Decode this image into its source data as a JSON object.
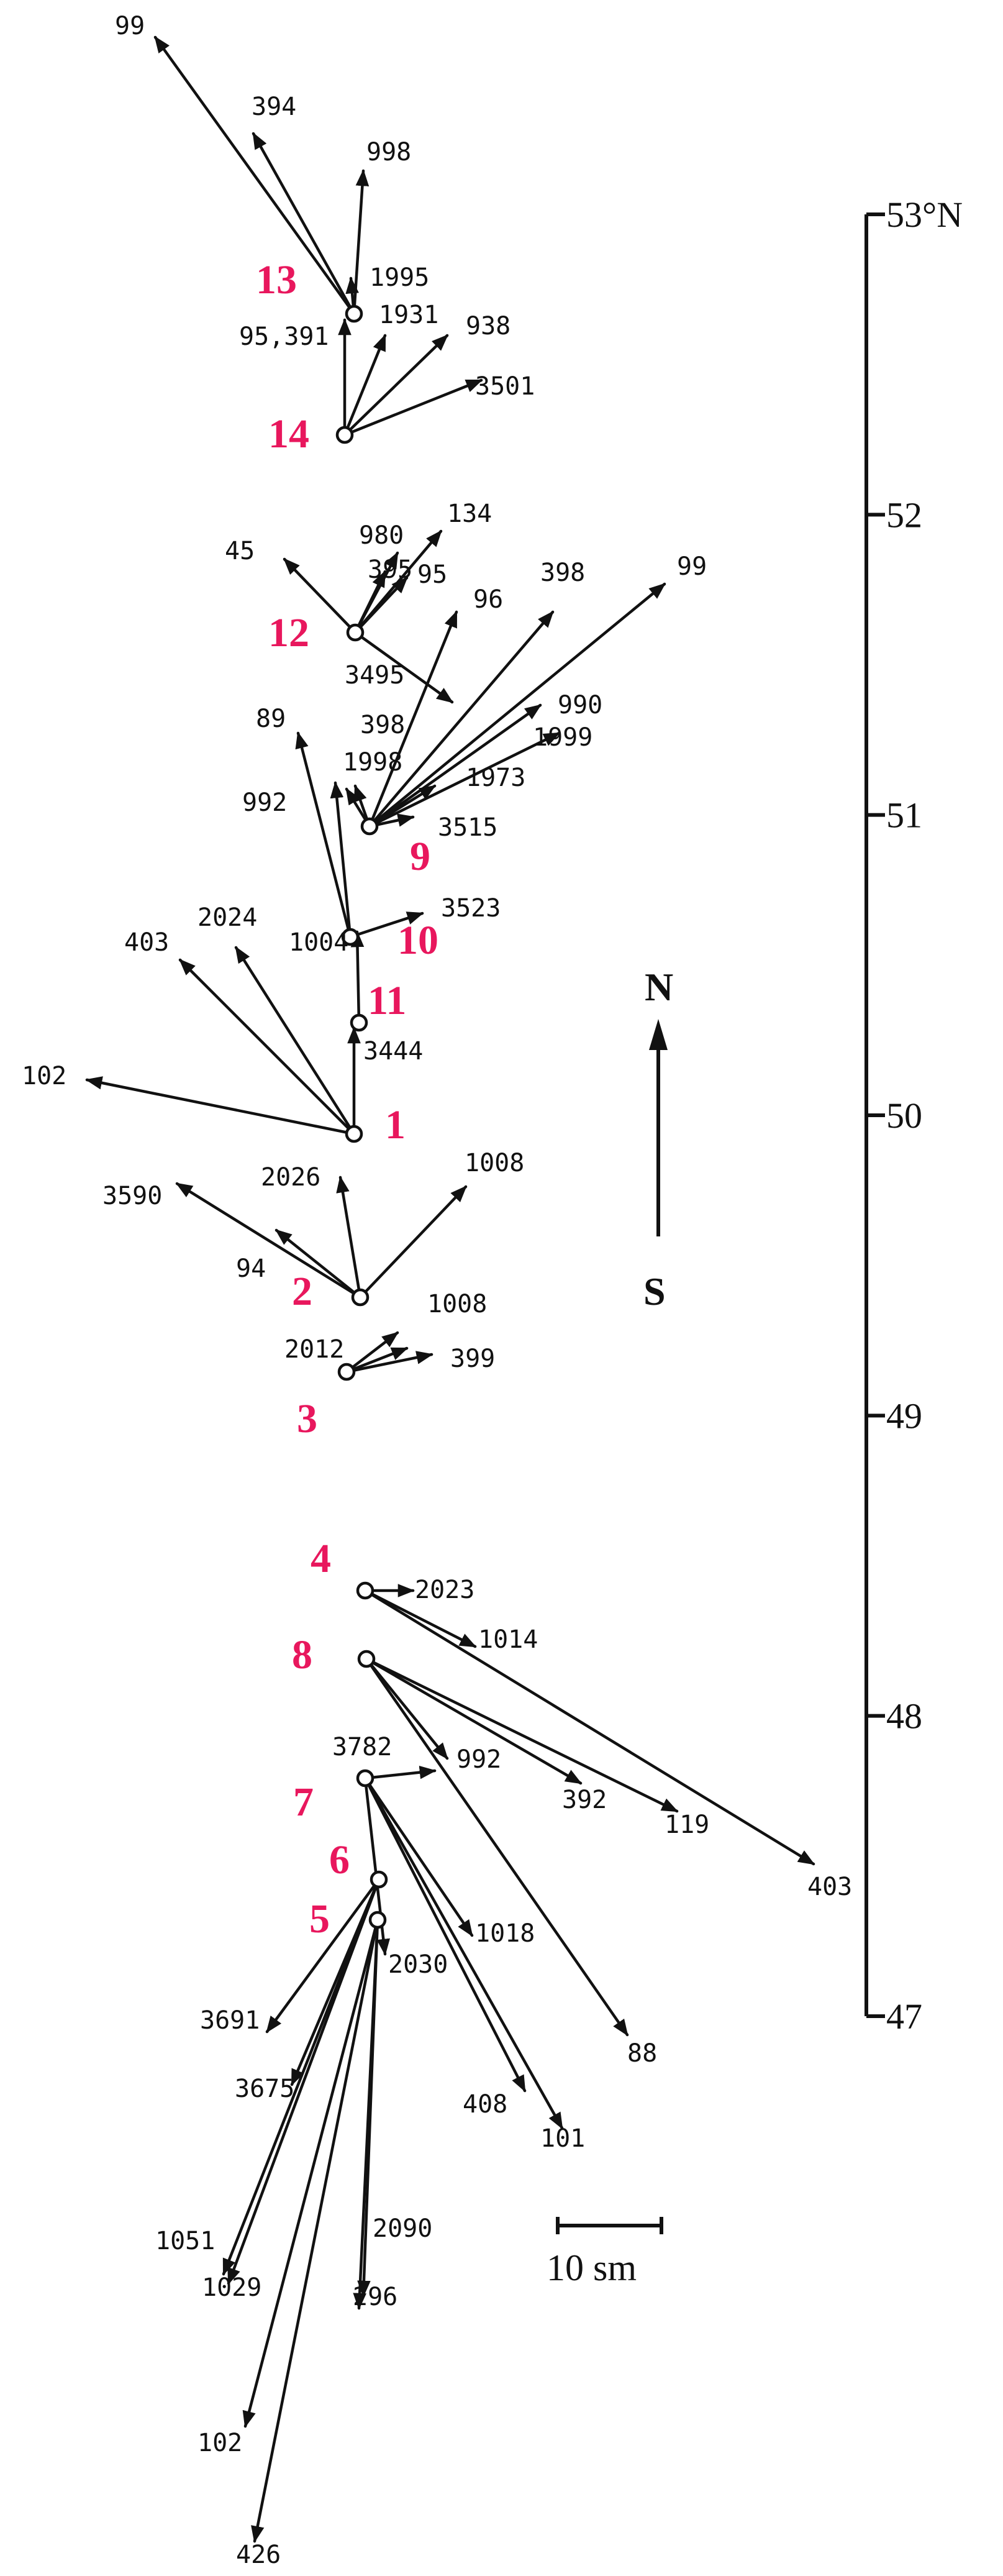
{
  "colors": {
    "site_label": "#e8175d",
    "ink": "#111111"
  },
  "latitude_axis": {
    "ticks": [
      {
        "value": 53,
        "label": "53°N"
      },
      {
        "value": 52,
        "label": "52"
      },
      {
        "value": 51,
        "label": "51"
      },
      {
        "value": 50,
        "label": "50"
      },
      {
        "value": 49,
        "label": "49"
      },
      {
        "value": 48,
        "label": "48"
      },
      {
        "value": 47,
        "label": "47"
      }
    ]
  },
  "compass": {
    "north": "N",
    "south": "S"
  },
  "scale_bar": {
    "label": "10 sm"
  },
  "sites": [
    {
      "id": "13",
      "label": "13"
    },
    {
      "id": "14",
      "label": "14"
    },
    {
      "id": "12",
      "label": "12"
    },
    {
      "id": "9",
      "label": "9"
    },
    {
      "id": "10",
      "label": "10"
    },
    {
      "id": "11",
      "label": "11"
    },
    {
      "id": "1",
      "label": "1"
    },
    {
      "id": "2",
      "label": "2"
    },
    {
      "id": "3",
      "label": "3"
    },
    {
      "id": "4",
      "label": "4"
    },
    {
      "id": "8",
      "label": "8"
    },
    {
      "id": "7",
      "label": "7"
    },
    {
      "id": "6",
      "label": "6"
    },
    {
      "id": "5",
      "label": "5"
    }
  ],
  "vectors": [
    {
      "site": "13",
      "label": "99"
    },
    {
      "site": "13",
      "label": "394"
    },
    {
      "site": "13",
      "label": "998"
    },
    {
      "site": "13",
      "label": "1995"
    },
    {
      "site": "14",
      "label": "95,391"
    },
    {
      "site": "14",
      "label": "1931"
    },
    {
      "site": "14",
      "label": "938"
    },
    {
      "site": "14",
      "label": "3501"
    },
    {
      "site": "12",
      "label": "45"
    },
    {
      "site": "12",
      "label": "395"
    },
    {
      "site": "12",
      "label": "980"
    },
    {
      "site": "12",
      "label": "134"
    },
    {
      "site": "12",
      "label": "95"
    },
    {
      "site": "12",
      "label": "3495"
    },
    {
      "site": "9",
      "label": "96"
    },
    {
      "site": "9",
      "label": "398"
    },
    {
      "site": "9",
      "label": "99"
    },
    {
      "site": "9",
      "label": "990"
    },
    {
      "site": "9",
      "label": "1999"
    },
    {
      "site": "9",
      "label": "1973"
    },
    {
      "site": "9",
      "label": "3515"
    },
    {
      "site": "9",
      "label": "398"
    },
    {
      "site": "9",
      "label": "1998"
    },
    {
      "site": "10",
      "label": "89"
    },
    {
      "site": "10",
      "label": "992"
    },
    {
      "site": "10",
      "label": "3523"
    },
    {
      "site": "11",
      "label": "1004"
    },
    {
      "site": "1",
      "label": "403"
    },
    {
      "site": "1",
      "label": "2024"
    },
    {
      "site": "1",
      "label": "102"
    },
    {
      "site": "1",
      "label": "3444"
    },
    {
      "site": "2",
      "label": "3590"
    },
    {
      "site": "2",
      "label": "2026"
    },
    {
      "site": "2",
      "label": "94"
    },
    {
      "site": "2",
      "label": "1008"
    },
    {
      "site": "3",
      "label": "2012"
    },
    {
      "site": "3",
      "label": "1008"
    },
    {
      "site": "3",
      "label": "399"
    },
    {
      "site": "4",
      "label": "2023"
    },
    {
      "site": "4",
      "label": "1014"
    },
    {
      "site": "4",
      "label": "403"
    },
    {
      "site": "8",
      "label": "992"
    },
    {
      "site": "8",
      "label": "392"
    },
    {
      "site": "8",
      "label": "119"
    },
    {
      "site": "8",
      "label": "88"
    },
    {
      "site": "7",
      "label": "3782"
    },
    {
      "site": "7",
      "label": "1018"
    },
    {
      "site": "7",
      "label": "2030"
    },
    {
      "site": "7",
      "label": "408"
    },
    {
      "site": "7",
      "label": "101"
    },
    {
      "site": "6",
      "label": "3691"
    },
    {
      "site": "6",
      "label": "3675"
    },
    {
      "site": "6",
      "label": "1051"
    },
    {
      "site": "6",
      "label": "1029"
    },
    {
      "site": "5",
      "label": "2090"
    },
    {
      "site": "5",
      "label": "296"
    },
    {
      "site": "5",
      "label": "102"
    },
    {
      "site": "5",
      "label": "426"
    }
  ]
}
